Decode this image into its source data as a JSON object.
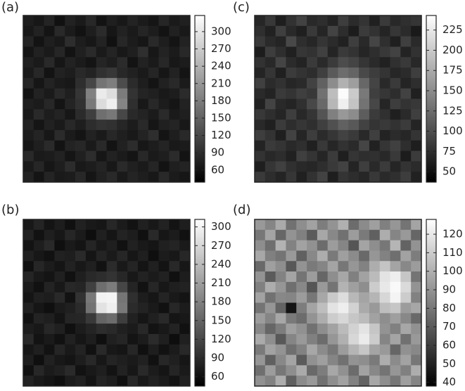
{
  "chart_data": [
    {
      "type": "heatmap",
      "label": "(a)",
      "colormap": "gray",
      "clim": [
        39,
        328
      ],
      "cticks": [
        60,
        90,
        120,
        150,
        180,
        210,
        240,
        270,
        300
      ],
      "z": [
        [
          72,
          65,
          80,
          58,
          77,
          69,
          84,
          61,
          74,
          66,
          79,
          70,
          63,
          82,
          68,
          75
        ],
        [
          66,
          78,
          62,
          85,
          70,
          59,
          73,
          88,
          64,
          77,
          69,
          81,
          72,
          60,
          76,
          67
        ],
        [
          80,
          61,
          74,
          67,
          90,
          72,
          65,
          79,
          58,
          83,
          71,
          64,
          86,
          73,
          62,
          78
        ],
        [
          63,
          76,
          69,
          82,
          61,
          75,
          87,
          68,
          80,
          66,
          74,
          92,
          65,
          79,
          70,
          84
        ],
        [
          75,
          68,
          85,
          64,
          78,
          70,
          62,
          81,
          73,
          88,
          60,
          77,
          69,
          83,
          66,
          71
        ],
        [
          69,
          83,
          60,
          77,
          72,
          86,
          79,
          95,
          101,
          84,
          76,
          68,
          81,
          64,
          78,
          62
        ],
        [
          82,
          64,
          79,
          70,
          66,
          91,
          118,
          170,
          182,
          125,
          88,
          73,
          62,
          76,
          85,
          70
        ],
        [
          61,
          77,
          68,
          86,
          74,
          99,
          185,
          305,
          290,
          178,
          97,
          80,
          75,
          67,
          72,
          88
        ],
        [
          74,
          70,
          83,
          62,
          80,
          94,
          176,
          288,
          310,
          190,
          92,
          66,
          84,
          71,
          63,
          77
        ],
        [
          67,
          85,
          72,
          79,
          65,
          88,
          110,
          165,
          175,
          120,
          85,
          79,
          70,
          87,
          68,
          74
        ],
        [
          79,
          63,
          76,
          68,
          84,
          73,
          90,
          98,
          94,
          82,
          71,
          86,
          64,
          75,
          80,
          66
        ],
        [
          71,
          80,
          65,
          88,
          70,
          62,
          77,
          69,
          83,
          74,
          67,
          79,
          91,
          62,
          73,
          85
        ],
        [
          64,
          74,
          87,
          61,
          79,
          83,
          68,
          85,
          60,
          76,
          89,
          65,
          72,
          80,
          67,
          70
        ],
        [
          86,
          69,
          71,
          77,
          63,
          75,
          90,
          64,
          78,
          70,
          62,
          84,
          68,
          73,
          88,
          61
        ],
        [
          68,
          82,
          64,
          73,
          89,
          67,
          72,
          80,
          66,
          87,
          75,
          69,
          81,
          60,
          74,
          79
        ],
        [
          77,
          62,
          80,
          69,
          71,
          84,
          63,
          76,
          85,
          68,
          80,
          73,
          66,
          85,
          70,
          64
        ]
      ]
    },
    {
      "type": "heatmap",
      "label": "(c)",
      "colormap": "gray",
      "clim": [
        37,
        243
      ],
      "cticks": [
        50,
        75,
        100,
        125,
        150,
        175,
        200,
        225
      ],
      "z": [
        [
          68,
          82,
          61,
          77,
          90,
          70,
          74,
          65,
          86,
          72,
          79,
          63,
          84,
          69,
          75,
          80
        ],
        [
          75,
          64,
          88,
          70,
          62,
          83,
          67,
          91,
          73,
          60,
          85,
          77,
          66,
          81,
          72,
          58
        ],
        [
          83,
          71,
          66,
          95,
          74,
          68,
          80,
          72,
          64,
          87,
          70,
          93,
          75,
          62,
          88,
          71
        ],
        [
          60,
          86,
          74,
          63,
          81,
          77,
          89,
          66,
          84,
          78,
          67,
          74,
          82,
          90,
          65,
          77
        ],
        [
          77,
          69,
          92,
          72,
          65,
          84,
          71,
          85,
          98,
          92,
          80,
          71,
          64,
          76,
          83,
          69
        ],
        [
          66,
          80,
          63,
          85,
          78,
          73,
          88,
          110,
          125,
          118,
          96,
          86,
          79,
          68,
          72,
          87
        ],
        [
          89,
          72,
          77,
          68,
          71,
          90,
          115,
          150,
          180,
          165,
          120,
          92,
          70,
          84,
          66,
          74
        ],
        [
          71,
          65,
          84,
          79,
          88,
          82,
          128,
          190,
          240,
          200,
          135,
          88,
          81,
          73,
          90,
          63
        ],
        [
          64,
          91,
          70,
          66,
          76,
          95,
          122,
          185,
          230,
          195,
          130,
          94,
          67,
          86,
          78,
          82
        ],
        [
          82,
          74,
          67,
          87,
          69,
          80,
          105,
          140,
          160,
          150,
          112,
          85,
          76,
          62,
          71,
          88
        ],
        [
          70,
          63,
          85,
          73,
          81,
          75,
          88,
          102,
          115,
          108,
          90,
          79,
          83,
          77,
          85,
          66
        ],
        [
          87,
          78,
          62,
          90,
          67,
          86,
          72,
          81,
          90,
          84,
          70,
          88,
          65,
          72,
          68,
          79
        ],
        [
          65,
          84,
          79,
          70,
          75,
          63,
          82,
          68,
          77,
          71,
          93,
          64,
          80,
          89,
          74,
          61
        ],
        [
          78,
          69,
          73,
          64,
          88,
          79,
          67,
          85,
          62,
          80,
          74,
          76,
          69,
          83,
          60,
          85
        ],
        [
          61,
          80,
          89,
          76,
          70,
          68,
          74,
          83,
          90,
          66,
          87,
          70,
          85,
          67,
          78,
          72
        ],
        [
          84,
          73,
          66,
          81,
          63,
          77,
          90,
          61,
          79,
          73,
          68,
          82,
          71,
          75,
          86,
          64
        ]
      ]
    },
    {
      "type": "heatmap",
      "label": "(b)",
      "colormap": "gray",
      "clim": [
        45,
        312
      ],
      "cticks": [
        60,
        90,
        120,
        150,
        180,
        210,
        240,
        270,
        300
      ],
      "z": [
        [
          70,
          83,
          66,
          75,
          62,
          80,
          71,
          68,
          86,
          73,
          64,
          79,
          70,
          81,
          65,
          76
        ],
        [
          81,
          64,
          77,
          69,
          85,
          73,
          60,
          79,
          67,
          82,
          75,
          62,
          88,
          68,
          74,
          63
        ],
        [
          65,
          76,
          88,
          61,
          72,
          66,
          84,
          70,
          77,
          63,
          80,
          71,
          67,
          79,
          83,
          72
        ],
        [
          78,
          69,
          63,
          80,
          76,
          89,
          67,
          83,
          72,
          85,
          68,
          77,
          61,
          74,
          70,
          86
        ],
        [
          62,
          85,
          74,
          67,
          81,
          70,
          79,
          64,
          90,
          71,
          83,
          66,
          78,
          65,
          87,
          69
        ],
        [
          84,
          71,
          66,
          79,
          63,
          77,
          88,
          92,
          98,
          86,
          70,
          81,
          73,
          80,
          62,
          75
        ],
        [
          73,
          63,
          82,
          70,
          87,
          84,
          112,
          160,
          175,
          118,
          83,
          64,
          85,
          69,
          77,
          81
        ],
        [
          67,
          79,
          75,
          88,
          64,
          97,
          172,
          298,
          300,
          168,
          94,
          75,
          68,
          83,
          71,
          66
        ],
        [
          80,
          68,
          61,
          73,
          78,
          90,
          165,
          282,
          295,
          172,
          90,
          82,
          72,
          63,
          86,
          74
        ],
        [
          64,
          82,
          77,
          66,
          84,
          85,
          105,
          150,
          158,
          110,
          80,
          68,
          79,
          88,
          67,
          70
        ],
        [
          75,
          70,
          86,
          79,
          62,
          74,
          83,
          92,
          88,
          78,
          73,
          87,
          65,
          71,
          82,
          63
        ],
        [
          88,
          65,
          72,
          63,
          80,
          68,
          76,
          61,
          79,
          84,
          66,
          74,
          90,
          77,
          60,
          79
        ],
        [
          69,
          77,
          64,
          84,
          71,
          82,
          63,
          88,
          70,
          67,
          85,
          62,
          76,
          64,
          73,
          87
        ],
        [
          76,
          61,
          80,
          70,
          66,
          75,
          87,
          69,
          83,
          77,
          72,
          80,
          63,
          86,
          78,
          68
        ],
        [
          63,
          86,
          73,
          78,
          89,
          64,
          71,
          77,
          65,
          81,
          69,
          88,
          74,
          67,
          84,
          72
        ],
        [
          82,
          72,
          67,
          61,
          74,
          80,
          66,
          83,
          76,
          62,
          87,
          71,
          80,
          73,
          65,
          78
        ]
      ]
    },
    {
      "type": "heatmap",
      "label": "(d)",
      "colormap": "gray",
      "clim": [
        38,
        128
      ],
      "cticks": [
        40,
        50,
        60,
        70,
        80,
        90,
        100,
        110,
        120
      ],
      "z": [
        [
          92,
          85,
          98,
          78,
          88,
          95,
          82,
          90,
          100,
          76,
          87,
          94,
          83,
          91,
          79,
          96
        ],
        [
          80,
          96,
          74,
          90,
          83,
          70,
          97,
          86,
          78,
          93,
          81,
          72,
          99,
          85,
          92,
          74
        ],
        [
          88,
          77,
          101,
          84,
          95,
          89,
          76,
          93,
          85,
          68,
          96,
          88,
          80,
          102,
          73,
          90
        ],
        [
          97,
          83,
          79,
          92,
          72,
          86,
          99,
          81,
          94,
          87,
          75,
          91,
          84,
          77,
          95,
          82
        ],
        [
          75,
          94,
          88,
          69,
          90,
          81,
          85,
          96,
          80,
          91,
          84,
          99,
          107,
          96,
          86,
          93
        ],
        [
          90,
          70,
          84,
          96,
          79,
          93,
          74,
          88,
          97,
          83,
          95,
          104,
          118,
          122,
          108,
          79
        ],
        [
          83,
          99,
          91,
          77,
          86,
          68,
          92,
          79,
          101,
          94,
          88,
          110,
          120,
          126,
          115,
          90
        ],
        [
          95,
          78,
          86,
          85,
          93,
          80,
          97,
          109,
          116,
          103,
          96,
          102,
          114,
          124,
          110,
          84
        ],
        [
          79,
          91,
          73,
          45,
          82,
          96,
          105,
          118,
          122,
          112,
          98,
          92,
          105,
          108,
          93,
          97
        ],
        [
          93,
          85,
          97,
          81,
          76,
          90,
          99,
          110,
          114,
          108,
          104,
          95,
          88,
          94,
          86,
          75
        ],
        [
          86,
          74,
          82,
          94,
          89,
          78,
          88,
          95,
          104,
          112,
          118,
          108,
          90,
          83,
          97,
          89
        ],
        [
          98,
          88,
          69,
          85,
          92,
          83,
          76,
          91,
          100,
          114,
          121,
          110,
          85,
          96,
          78,
          92
        ],
        [
          81,
          95,
          90,
          77,
          84,
          97,
          87,
          80,
          93,
          102,
          108,
          96,
          92,
          74,
          89,
          86
        ],
        [
          91,
          72,
          86,
          96,
          70,
          89,
          94,
          85,
          78,
          90,
          88,
          81,
          99,
          87,
          95,
          80
        ],
        [
          77,
          93,
          80,
          88,
          98,
          75,
          82,
          97,
          89,
          76,
          95,
          86,
          79,
          91,
          83,
          99
        ],
        [
          89,
          84,
          99,
          72,
          87,
          92,
          78,
          88,
          95,
          84,
          73,
          97,
          88,
          80,
          94,
          85
        ]
      ]
    }
  ]
}
